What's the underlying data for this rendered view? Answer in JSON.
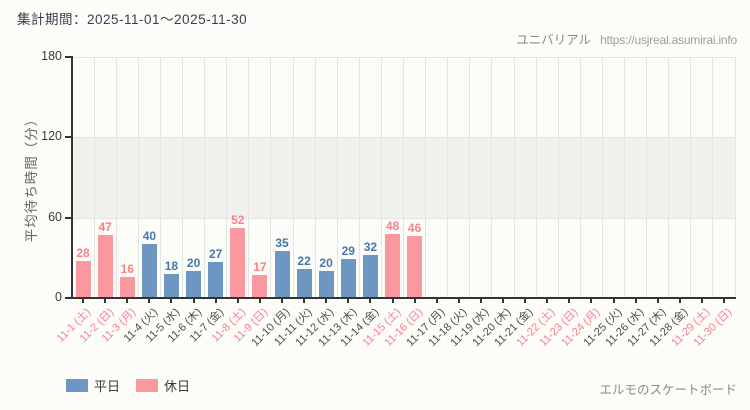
{
  "header": {
    "period_label": "集計期間：2025-11-01～2025-11-30"
  },
  "watermark": {
    "site_name": "ユニバリアル",
    "site_url": "https://usjreal.asumirai.info"
  },
  "footer": {
    "attraction_name": "エルモのスケートボード"
  },
  "legend": [
    {
      "label": "平日",
      "color": "#6e96c3"
    },
    {
      "label": "休日",
      "color": "#f9989f"
    }
  ],
  "chart_data": {
    "type": "bar",
    "title": "",
    "xlabel": "",
    "ylabel": "平均待ち時間（分）",
    "unit": "分",
    "ylim": [
      0,
      180
    ],
    "yticks": [
      0,
      60,
      120,
      180
    ],
    "shaded_band_y": [
      60,
      120
    ],
    "grid": "vertical",
    "legend_position": "bottom-left",
    "categories": [
      "11-1 (土)",
      "11-2 (日)",
      "11-3 (月)",
      "11-4 (火)",
      "11-5 (水)",
      "11-6 (木)",
      "11-7 (金)",
      "11-8 (土)",
      "11-9 (日)",
      "11-10 (月)",
      "11-11 (火)",
      "11-12 (水)",
      "11-13 (木)",
      "11-14 (金)",
      "11-15 (土)",
      "11-16 (日)",
      "11-17 (月)",
      "11-18 (火)",
      "11-19 (水)",
      "11-20 (木)",
      "11-21 (金)",
      "11-22 (土)",
      "11-23 (日)",
      "11-24 (月)",
      "11-25 (火)",
      "11-26 (水)",
      "11-27 (木)",
      "11-28 (金)",
      "11-29 (土)",
      "11-30 (日)"
    ],
    "day_types": [
      "holiday",
      "holiday",
      "holiday",
      "weekday",
      "weekday",
      "weekday",
      "weekday",
      "holiday",
      "holiday",
      "weekday",
      "weekday",
      "weekday",
      "weekday",
      "weekday",
      "holiday",
      "holiday",
      "weekday",
      "weekday",
      "weekday",
      "weekday",
      "weekday",
      "holiday",
      "holiday",
      "holiday",
      "weekday",
      "weekday",
      "weekday",
      "weekday",
      "holiday",
      "holiday"
    ],
    "values": [
      28,
      47,
      16,
      40,
      18,
      20,
      27,
      52,
      17,
      35,
      22,
      20,
      29,
      32,
      48,
      46,
      null,
      null,
      null,
      null,
      null,
      null,
      null,
      null,
      null,
      null,
      null,
      null,
      null,
      null
    ],
    "colors": {
      "weekday_bar": "#6e96c3",
      "holiday_bar": "#f9989f",
      "weekday_value": "#4677ad",
      "holiday_value": "#f8818c",
      "weekday_tick_label": "#4d4d4d",
      "holiday_tick_label": "#f8818c",
      "axis": "#333333",
      "grid_line": "#e4e4e1",
      "band_fill": "#f0f0ed"
    }
  }
}
